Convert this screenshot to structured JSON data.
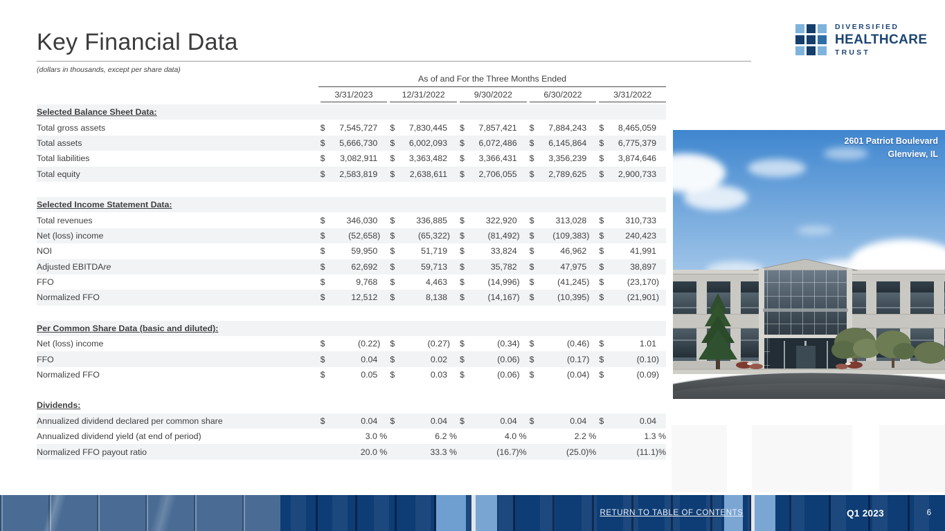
{
  "page": {
    "title": "Key Financial Data",
    "subtitle": "(dollars in thousands, except per share data)"
  },
  "logo": {
    "line1": "DIVERSIFIED",
    "line2": "HEALTHCARE",
    "line3": "TRUST",
    "colors": {
      "light": "#7fb3dc",
      "medium": "#2f6da6",
      "navy": "#153e6c"
    },
    "grid": [
      [
        "light",
        "navy",
        "light"
      ],
      [
        "navy",
        "navy",
        "medium"
      ],
      [
        "light",
        "navy",
        "light"
      ]
    ]
  },
  "table": {
    "period_header": "As of and For the Three Months Ended",
    "columns": [
      "3/31/2023",
      "12/31/2022",
      "9/30/2022",
      "6/30/2022",
      "3/31/2022"
    ],
    "sections": [
      {
        "header": "Selected Balance Sheet Data:",
        "header_shaded": true,
        "rows": [
          {
            "label": "Total gross assets",
            "prefix": "$",
            "values": [
              "7,545,727",
              "7,830,445",
              "7,857,421",
              "7,884,243",
              "8,465,059"
            ]
          },
          {
            "label": "Total assets",
            "prefix": "$",
            "values": [
              "5,666,730",
              "6,002,093",
              "6,072,486",
              "6,145,864",
              "6,775,379"
            ]
          },
          {
            "label": "Total liabilities",
            "prefix": "$",
            "values": [
              "3,082,911",
              "3,363,482",
              "3,366,431",
              "3,356,239",
              "3,874,646"
            ]
          },
          {
            "label": "Total equity",
            "prefix": "$",
            "values": [
              "2,583,819",
              "2,638,611",
              "2,706,055",
              "2,789,625",
              "2,900,733"
            ]
          }
        ]
      },
      {
        "header": "Selected Income Statement Data:",
        "header_shaded": true,
        "rows": [
          {
            "label": "Total revenues",
            "prefix": "$",
            "values": [
              "346,030",
              "336,885",
              "322,920",
              "313,028",
              "310,733"
            ]
          },
          {
            "label": "Net (loss) income",
            "prefix": "$",
            "values": [
              "(52,658)",
              "(65,322)",
              "(81,492)",
              "(109,383)",
              "240,423"
            ]
          },
          {
            "label": "NOI",
            "prefix": "$",
            "values": [
              "59,950",
              "51,719",
              "33,824",
              "46,962",
              "41,991"
            ]
          },
          {
            "label": "Adjusted EBITDA",
            "label_italic": "re",
            "prefix": "$",
            "values": [
              "62,692",
              "59,713",
              "35,782",
              "47,975",
              "38,897"
            ]
          },
          {
            "label": "FFO",
            "prefix": "$",
            "values": [
              "9,768",
              "4,463",
              "(14,996)",
              "(41,245)",
              "(23,170)"
            ]
          },
          {
            "label": "Normalized FFO",
            "prefix": "$",
            "values": [
              "12,512",
              "8,138",
              "(14,167)",
              "(10,395)",
              "(21,901)"
            ]
          }
        ]
      },
      {
        "header": "Per Common Share Data (basic and diluted):",
        "header_shaded": true,
        "rows": [
          {
            "label": "Net (loss) income",
            "prefix": "$",
            "values": [
              "(0.22)",
              "(0.27)",
              "(0.34)",
              "(0.46)",
              "1.01"
            ]
          },
          {
            "label": "FFO",
            "prefix": "$",
            "values": [
              "0.04",
              "0.02",
              "(0.06)",
              "(0.17)",
              "(0.10)"
            ]
          },
          {
            "label": "Normalized FFO",
            "prefix": "$",
            "values": [
              "0.05",
              "0.03",
              "(0.06)",
              "(0.04)",
              "(0.09)"
            ]
          }
        ]
      },
      {
        "header": "Dividends:",
        "header_shaded": false,
        "rows": [
          {
            "label": "Annualized dividend declared per common share",
            "prefix": "$",
            "values": [
              "0.04",
              "0.04",
              "0.04",
              "0.04",
              "0.04"
            ]
          },
          {
            "label": "Annualized dividend yield (at end of period)",
            "prefix": "",
            "values": [
              "3.0 %",
              "6.2 %",
              "4.0 %",
              "2.2 %",
              "1.3 %"
            ]
          },
          {
            "label": "Normalized FFO payout ratio",
            "prefix": "",
            "values": [
              "20.0 %",
              "33.3 %",
              "(16.7)%",
              "(25.0)%",
              "(11.1)%"
            ]
          }
        ]
      }
    ]
  },
  "photo": {
    "caption_line1": "2601 Patriot Boulevard",
    "caption_line2": "Glenview, IL"
  },
  "footer": {
    "link": "RETURN TO TABLE OF CONTENTS",
    "quarter": "Q1 2023",
    "page_number": "6"
  }
}
